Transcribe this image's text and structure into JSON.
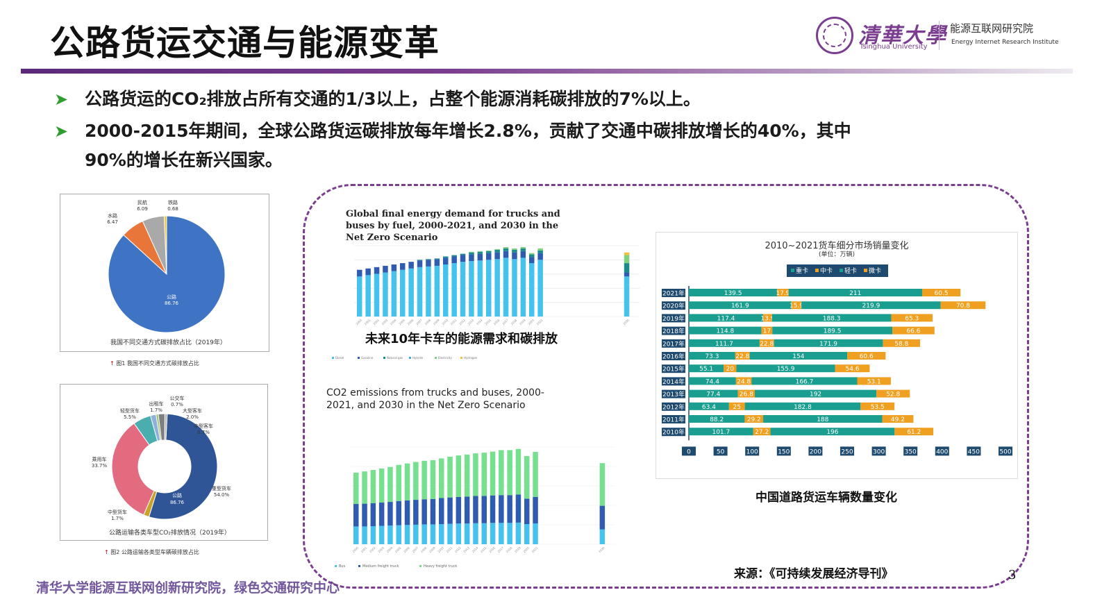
{
  "slide": {
    "title": "公路货运交通与能源变革",
    "logo_cn": "清華大學",
    "logo_en": "Tsinghua University",
    "institute_cn": "能源互联网研究院",
    "institute_en": "Energy Internet Research Institute",
    "bullet1": "公路货运的CO₂排放占所有交通的1/3以上，占整个能源消耗碳排放的7%以上。",
    "bullet2_line1": "2000-2015年期间，全球公路货运碳排放每年增长2.8%，贡献了交通中碳排放增长的40%，其中",
    "bullet2_line2": "90%的增长在新兴国家。",
    "footer": "清华大学能源互联网创新研究院，绿色交通研究中心",
    "source": "来源：《可持续发展经济导刊》",
    "page": "3",
    "colors": {
      "accent": "#7b3d8f",
      "bullet_arrow": "#2f9e2f"
    }
  },
  "pie": {
    "caption": "我国不同交通方式碳排放占比（2019年）",
    "figure_label": "图1  我国不同交通方式碳排放占比",
    "chart_data": {
      "type": "pie",
      "slices": [
        {
          "name": "公路",
          "value": 86.76,
          "label": "86.76",
          "color": "#3f73c3"
        },
        {
          "name": "水路",
          "value": 6.47,
          "label": "6.47",
          "color": "#e8763a"
        },
        {
          "name": "民航",
          "value": 6.09,
          "label": "6.09",
          "color": "#a9a9a9"
        },
        {
          "name": "铁路",
          "value": 0.68,
          "label": "0.68",
          "color": "#f2c230"
        }
      ]
    }
  },
  "donut": {
    "caption": "公路运输各类车型CO₂排放情况（2019年）",
    "figure_label": "图2  公路运输各类型车辆碳排放占比",
    "inner_label": "公路",
    "inner_value": "86.76",
    "chart_data": {
      "type": "pie",
      "slices": [
        {
          "name": "重型货车",
          "value": 54.0,
          "label": "54.0%",
          "color": "#2f5597"
        },
        {
          "name": "中型货车",
          "value": 1.7,
          "label": "1.7%",
          "color": "#c9a227"
        },
        {
          "name": "乘用车",
          "value": 33.7,
          "label": "33.7%",
          "color": "#e26b7f"
        },
        {
          "name": "轻型货车",
          "value": 5.5,
          "label": "5.5%",
          "color": "#4aaeae"
        },
        {
          "name": "出租车",
          "value": 1.7,
          "label": "1.7%",
          "color": "#8fb0d8"
        },
        {
          "name": "公交车",
          "value": 0.7,
          "label": "0.7%",
          "color": "#9bbf6a"
        },
        {
          "name": "大型客车",
          "value": 2.0,
          "label": "2.0%",
          "color": "#7f7f7f"
        },
        {
          "name": "中型客车",
          "value": 0.7,
          "label": "0.7%",
          "color": "#b0b0b0"
        }
      ]
    }
  },
  "energy": {
    "title": "Global final energy demand for trucks and buses by fuel, 2000-2021, and 2030 in the Net Zero Scenario",
    "label": "未来10年卡车的能源需求和碳排放",
    "legend": [
      "Diesel",
      "Gasoline",
      "Natural gas",
      "Hybrids",
      "Electricity",
      "Hydrogen"
    ],
    "chart_data": {
      "type": "bar",
      "x": [
        "2000",
        "2001",
        "2002",
        "2003",
        "2004",
        "2005",
        "2006",
        "2007",
        "2008",
        "2009",
        "2010",
        "2011",
        "2012",
        "2013",
        "2014",
        "2015",
        "2016",
        "2017",
        "2018",
        "2019",
        "2020",
        "2021",
        "2030"
      ],
      "series": [
        {
          "name": "Diesel",
          "color": "#45c3ee",
          "values": [
            60,
            62,
            64,
            66,
            68,
            70,
            72,
            74,
            75,
            76,
            78,
            80,
            82,
            83,
            84,
            85,
            86,
            88,
            86,
            88,
            80,
            85,
            60
          ]
        },
        {
          "name": "Gasoline",
          "color": "#2f5bb0",
          "values": [
            10,
            10,
            10,
            10,
            10,
            10,
            10,
            10,
            10,
            10,
            10,
            10,
            10,
            10,
            10,
            10,
            10,
            10,
            10,
            10,
            9,
            10,
            6
          ]
        },
        {
          "name": "Natural gas",
          "color": "#1b8a8a",
          "values": [
            0,
            0,
            0,
            0,
            0,
            0,
            0,
            1,
            1,
            1,
            2,
            2,
            2,
            3,
            3,
            3,
            4,
            4,
            4,
            4,
            4,
            4,
            14
          ]
        },
        {
          "name": "Electricity",
          "color": "#7fd07f",
          "values": [
            0,
            0,
            0,
            0,
            0,
            0,
            0,
            0,
            0,
            0,
            0,
            0,
            0,
            1,
            1,
            1,
            1,
            2,
            2,
            2,
            2,
            3,
            12
          ]
        },
        {
          "name": "Hydrogen",
          "color": "#f0c040",
          "values": [
            0,
            0,
            0,
            0,
            0,
            0,
            0,
            0,
            0,
            0,
            0,
            0,
            0,
            0,
            0,
            0,
            0,
            0,
            0,
            0,
            0,
            0,
            4
          ]
        }
      ]
    }
  },
  "co2": {
    "title": "CO2 emissions from trucks and buses, 2000-2021, and 2030 in the Net Zero Scenario",
    "legend": [
      "Bus",
      "Medium freight truck",
      "Heavy freight truck"
    ],
    "chart_data": {
      "type": "bar",
      "x": [
        "2000",
        "2001",
        "2002",
        "2003",
        "2004",
        "2005",
        "2006",
        "2007",
        "2008",
        "2009",
        "2010",
        "2011",
        "2012",
        "2013",
        "2014",
        "2015",
        "2016",
        "2017",
        "2018",
        "2019",
        "2020",
        "2021",
        "2030"
      ],
      "series": [
        {
          "name": "Bus",
          "color": "#45c3ee",
          "values": [
            300,
            300,
            305,
            310,
            315,
            320,
            325,
            330,
            335,
            335,
            340,
            345,
            350,
            350,
            355,
            355,
            360,
            360,
            360,
            365,
            340,
            350,
            250
          ]
        },
        {
          "name": "Medium freight truck",
          "color": "#2f5bb0",
          "values": [
            380,
            385,
            390,
            395,
            400,
            410,
            415,
            420,
            425,
            430,
            440,
            445,
            450,
            455,
            460,
            462,
            465,
            470,
            470,
            475,
            430,
            450,
            400
          ]
        },
        {
          "name": "Heavy freight truck",
          "color": "#77e08f",
          "values": [
            530,
            545,
            560,
            575,
            590,
            610,
            625,
            640,
            650,
            655,
            670,
            690,
            700,
            710,
            720,
            730,
            740,
            760,
            760,
            770,
            720,
            760,
            720
          ]
        }
      ]
    }
  },
  "sales": {
    "title": "2010~2021货车细分市场销量变化",
    "unit": "(单位：万辆)",
    "label": "中国道路货运车辆数量变化",
    "legend": [
      "重卡",
      "中卡",
      "轻卡",
      "微卡"
    ],
    "chart_data": {
      "type": "bar",
      "orientation": "horizontal",
      "stacked": true,
      "xlim": [
        0,
        500
      ],
      "xticks": [
        "0",
        "50",
        "100",
        "150",
        "200",
        "250",
        "300",
        "350",
        "400",
        "450",
        "500"
      ],
      "categories": [
        "2021年",
        "2020年",
        "2019年",
        "2018年",
        "2017年",
        "2016年",
        "2015年",
        "2014年",
        "2013年",
        "2012年",
        "2011年",
        "2010年"
      ],
      "series": [
        {
          "name": "重卡",
          "color": "#1a9e8f",
          "values": [
            139.5,
            161.9,
            117.4,
            114.8,
            111.7,
            73.3,
            55.1,
            74.4,
            77.4,
            63.4,
            88.2,
            101.7
          ],
          "labels": [
            "139.5",
            "161.9",
            "117.4",
            "114.8",
            "111.7",
            "73.3",
            "55.1",
            "74.4",
            "77.4",
            "63.4",
            "88.2",
            "101.7"
          ]
        },
        {
          "name": "中卡",
          "color": "#f0a020",
          "values": [
            17.9,
            15.9,
            13.9,
            17,
            22.8,
            22.8,
            20,
            24.8,
            26.8,
            25,
            29.2,
            27.2
          ],
          "labels": [
            "17.9",
            "15.9",
            "13.9",
            "17",
            "22.8",
            "22.8",
            "20",
            "24.8",
            "26.8",
            "25",
            "29.2",
            "27.2"
          ]
        },
        {
          "name": "轻卡",
          "color": "#1a9e8f",
          "values": [
            211,
            219.9,
            188.3,
            189.5,
            171.9,
            154,
            155.9,
            166.7,
            192,
            182.8,
            188,
            196
          ],
          "labels": [
            "211",
            "219.9",
            "188.3",
            "189.5",
            "171.9",
            "154",
            "155.9",
            "166.7",
            "192",
            "182.8",
            "188",
            "196"
          ]
        },
        {
          "name": "微卡",
          "color": "#f0a020",
          "values": [
            60.5,
            70.8,
            65.3,
            66.6,
            58.8,
            60.6,
            54.6,
            53.1,
            52.8,
            53.5,
            49.2,
            61.2
          ],
          "labels": [
            "60.5",
            "70.8",
            "65.3",
            "66.6",
            "58.8",
            "60.6",
            "54.6",
            "53.1",
            "52.8",
            "53.5",
            "49.2",
            "61.2"
          ]
        }
      ]
    }
  }
}
